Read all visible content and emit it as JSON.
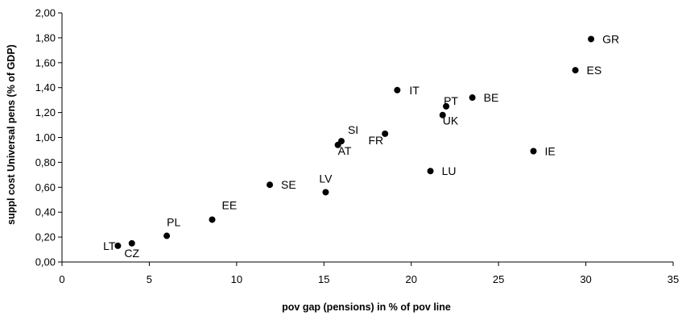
{
  "chart_data": {
    "type": "scatter",
    "xlabel": "pov gap (pensions) in % of pov line",
    "ylabel": "suppl cost Universal pens (% of GDP)",
    "xlim": [
      0,
      35
    ],
    "ylim": [
      0,
      2.0
    ],
    "x_ticks": [
      "0",
      "5",
      "10",
      "15",
      "20",
      "25",
      "30",
      "35"
    ],
    "y_ticks": [
      "0,00",
      "0,20",
      "0,40",
      "0,60",
      "0,80",
      "1,00",
      "1,20",
      "1,40",
      "1,60",
      "1,80",
      "2,00"
    ],
    "grid": false,
    "points": [
      {
        "label": "GR",
        "x": 30.3,
        "y": 1.79
      },
      {
        "label": "ES",
        "x": 29.4,
        "y": 1.54
      },
      {
        "label": "IT",
        "x": 19.2,
        "y": 1.38
      },
      {
        "label": "BE",
        "x": 23.5,
        "y": 1.32
      },
      {
        "label": "PT",
        "x": 22.0,
        "y": 1.25
      },
      {
        "label": "UK",
        "x": 21.8,
        "y": 1.18
      },
      {
        "label": "FR",
        "x": 18.5,
        "y": 1.03
      },
      {
        "label": "SI",
        "x": 16.0,
        "y": 0.97
      },
      {
        "label": "AT",
        "x": 15.8,
        "y": 0.94
      },
      {
        "label": "IE",
        "x": 27.0,
        "y": 0.89
      },
      {
        "label": "LU",
        "x": 21.1,
        "y": 0.73
      },
      {
        "label": "SE",
        "x": 11.9,
        "y": 0.62
      },
      {
        "label": "LV",
        "x": 15.1,
        "y": 0.56
      },
      {
        "label": "EE",
        "x": 8.6,
        "y": 0.34
      },
      {
        "label": "PL",
        "x": 6.0,
        "y": 0.21
      },
      {
        "label": "CZ",
        "x": 4.0,
        "y": 0.15
      },
      {
        "label": "LT",
        "x": 3.2,
        "y": 0.13
      }
    ]
  }
}
